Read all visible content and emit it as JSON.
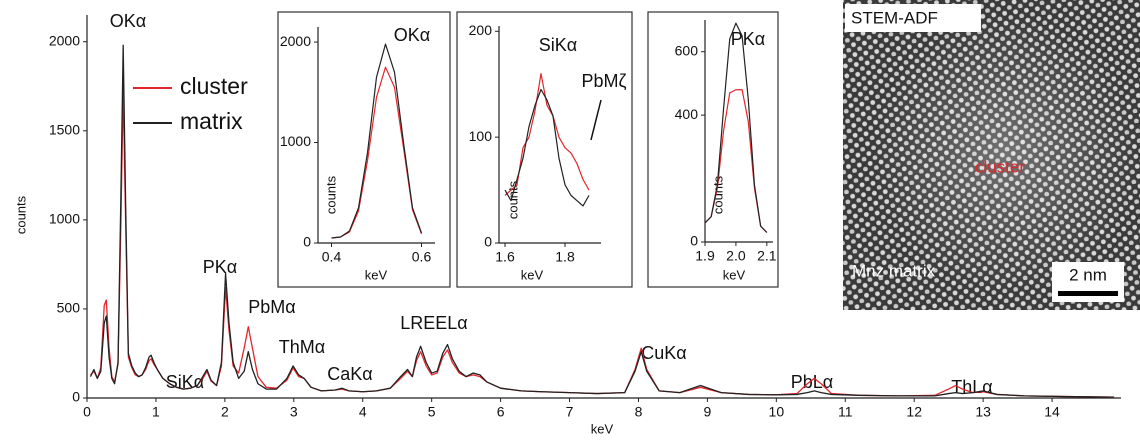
{
  "chart_data": [
    {
      "type": "line",
      "x_label": "keV",
      "y_label": "counts",
      "annotations": [
        "OKα",
        "PKα",
        "SiKα",
        "PbMα",
        "ThMα",
        "CaKα",
        "LREELα",
        "CuKα",
        "PbLα",
        "ThLα"
      ],
      "legend": "top-left",
      "x": [
        0.05,
        0.1,
        0.15,
        0.2,
        0.25,
        0.28,
        0.32,
        0.36,
        0.4,
        0.45,
        0.49,
        0.525,
        0.56,
        0.6,
        0.65,
        0.7,
        0.75,
        0.8,
        0.85,
        0.9,
        0.93,
        0.97,
        1.02,
        1.1,
        1.2,
        1.3,
        1.4,
        1.5,
        1.6,
        1.68,
        1.74,
        1.8,
        1.88,
        1.95,
        2.01,
        2.06,
        2.12,
        2.2,
        2.28,
        2.34,
        2.4,
        2.48,
        2.6,
        2.75,
        2.9,
        2.99,
        3.07,
        3.15,
        3.25,
        3.4,
        3.6,
        3.7,
        3.8,
        4.0,
        4.2,
        4.4,
        4.55,
        4.65,
        4.72,
        4.78,
        4.84,
        4.92,
        5.0,
        5.08,
        5.16,
        5.23,
        5.3,
        5.4,
        5.5,
        5.6,
        5.7,
        5.8,
        6.0,
        6.3,
        6.6,
        7.0,
        7.4,
        7.8,
        7.95,
        8.04,
        8.12,
        8.3,
        8.6,
        8.9,
        9.2,
        9.6,
        10.0,
        10.3,
        10.45,
        10.55,
        10.65,
        10.8,
        11.2,
        11.8,
        12.3,
        12.5,
        12.6,
        12.7,
        12.85,
        13.0,
        13.2,
        13.6,
        14.2,
        14.9
      ],
      "series": [
        {
          "name": "cluster",
          "color": "#e3262b",
          "values": [
            130,
            150,
            110,
            170,
            520,
            550,
            280,
            120,
            90,
            190,
            950,
            1730,
            1000,
            230,
            170,
            130,
            120,
            130,
            160,
            210,
            220,
            190,
            160,
            110,
            80,
            60,
            50,
            55,
            70,
            110,
            150,
            95,
            70,
            180,
            620,
            380,
            180,
            140,
            280,
            400,
            280,
            120,
            60,
            55,
            100,
            170,
            120,
            110,
            60,
            40,
            45,
            50,
            40,
            35,
            40,
            55,
            110,
            150,
            120,
            210,
            260,
            180,
            130,
            140,
            230,
            270,
            200,
            140,
            120,
            130,
            120,
            90,
            55,
            40,
            35,
            30,
            25,
            30,
            160,
            280,
            160,
            40,
            30,
            60,
            30,
            20,
            18,
            25,
            80,
            110,
            80,
            25,
            15,
            12,
            15,
            50,
            70,
            50,
            30,
            35,
            20,
            12,
            8,
            5
          ]
        },
        {
          "name": "matrix",
          "color": "#222222",
          "values": [
            120,
            160,
            110,
            150,
            420,
            460,
            230,
            110,
            80,
            200,
            1100,
            1980,
            1100,
            250,
            180,
            140,
            120,
            130,
            170,
            230,
            240,
            200,
            160,
            110,
            80,
            60,
            50,
            55,
            70,
            120,
            160,
            100,
            70,
            200,
            700,
            420,
            200,
            110,
            150,
            260,
            160,
            80,
            50,
            50,
            110,
            180,
            130,
            110,
            60,
            40,
            45,
            55,
            40,
            35,
            40,
            55,
            120,
            160,
            120,
            230,
            290,
            200,
            140,
            150,
            250,
            300,
            220,
            150,
            120,
            140,
            130,
            90,
            55,
            40,
            35,
            30,
            25,
            30,
            150,
            260,
            150,
            40,
            30,
            70,
            30,
            20,
            18,
            20,
            30,
            40,
            30,
            20,
            15,
            12,
            12,
            25,
            30,
            25,
            30,
            40,
            20,
            12,
            8,
            5
          ]
        }
      ],
      "xlim": [
        0,
        15
      ],
      "ylim": [
        0,
        2150
      ],
      "xticks": [
        0,
        1,
        2,
        3,
        4,
        5,
        6,
        7,
        8,
        9,
        10,
        11,
        12,
        13,
        14
      ],
      "yticks": [
        0,
        500,
        1000,
        1500,
        2000
      ]
    },
    {
      "type": "line",
      "title": "OKα",
      "x_label": "keV",
      "y_label": "counts",
      "x": [
        0.4,
        0.42,
        0.44,
        0.46,
        0.48,
        0.5,
        0.52,
        0.54,
        0.56,
        0.58,
        0.6
      ],
      "series": [
        {
          "name": "cluster",
          "color": "#e3262b",
          "values": [
            50,
            60,
            110,
            320,
            820,
            1450,
            1750,
            1550,
            950,
            330,
            90
          ]
        },
        {
          "name": "matrix",
          "color": "#222222",
          "values": [
            50,
            60,
            120,
            350,
            900,
            1650,
            1980,
            1700,
            1000,
            350,
            100
          ]
        }
      ],
      "xlim": [
        0.37,
        0.63
      ],
      "ylim": [
        0,
        2150
      ],
      "xticks": [
        0.4,
        0.6
      ],
      "yticks": [
        0,
        1000,
        2000
      ]
    },
    {
      "type": "line",
      "x_label": "keV",
      "y_label": "counts",
      "annotations": [
        "SiKα",
        "PbMζ"
      ],
      "x": [
        1.6,
        1.62,
        1.64,
        1.66,
        1.68,
        1.7,
        1.72,
        1.74,
        1.76,
        1.78,
        1.8,
        1.82,
        1.84,
        1.86,
        1.88
      ],
      "series": [
        {
          "name": "cluster",
          "color": "#e3262b",
          "values": [
            45,
            50,
            55,
            90,
            100,
            125,
            160,
            130,
            120,
            100,
            90,
            85,
            75,
            60,
            50
          ]
        },
        {
          "name": "matrix",
          "color": "#222222",
          "values": [
            50,
            40,
            60,
            80,
            110,
            130,
            145,
            135,
            120,
            80,
            55,
            45,
            40,
            35,
            45
          ]
        }
      ],
      "xlim": [
        1.58,
        1.92
      ],
      "ylim": [
        0,
        205
      ],
      "xticks": [
        1.6,
        1.8
      ],
      "yticks": [
        0,
        100,
        200
      ]
    },
    {
      "type": "line",
      "title": "PKα",
      "x_label": "keV",
      "y_label": "counts",
      "x": [
        1.9,
        1.92,
        1.94,
        1.96,
        1.98,
        2.0,
        2.02,
        2.04,
        2.06,
        2.08,
        2.1
      ],
      "series": [
        {
          "name": "cluster",
          "color": "#e3262b",
          "values": [
            60,
            80,
            170,
            350,
            470,
            480,
            480,
            380,
            170,
            50,
            30
          ]
        },
        {
          "name": "matrix",
          "color": "#222222",
          "values": [
            60,
            80,
            180,
            420,
            640,
            690,
            650,
            450,
            180,
            50,
            30
          ]
        }
      ],
      "xlim": [
        1.9,
        2.12
      ],
      "ylim": [
        0,
        700
      ],
      "xticks": [
        1.9,
        {
          "value": 2,
          "label": "2.0"
        },
        2.1
      ],
      "yticks": [
        0,
        400,
        600
      ]
    }
  ],
  "image": {
    "title": "STEM-ADF",
    "cluster_label": "cluster",
    "matrix_label": "Mnz matrix",
    "scale_bar": "2 nm"
  }
}
